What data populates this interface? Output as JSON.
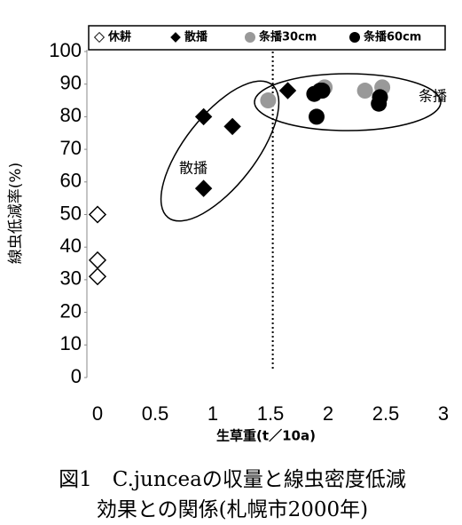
{
  "chart_data": {
    "type": "scatter",
    "caption": [
      "図1　C.junceaの収量と線虫密度低減",
      "効果との関係(札幌市2000年)"
    ],
    "xlabel": "生草重(t／10a)",
    "ylabel": "線虫低減率(%)",
    "xlim": [
      0,
      3
    ],
    "xticks": [
      0,
      0.5,
      1,
      1.5,
      2,
      2.5,
      3
    ],
    "ylim": [
      0,
      100
    ],
    "yticks": [
      0,
      10,
      20,
      30,
      40,
      50,
      60,
      70,
      80,
      90,
      100
    ],
    "reference_x": 1.52,
    "annotations": [
      "散播",
      "条播"
    ],
    "series": [
      {
        "name": "休耕",
        "color": "#000000",
        "marker": "diamond-open",
        "x": [
          0,
          0,
          0
        ],
        "values": [
          50,
          36,
          31
        ]
      },
      {
        "name": "散播",
        "color": "#000000",
        "marker": "diamond",
        "x": [
          0.92,
          1.17,
          0.92,
          1.65
        ],
        "values": [
          80,
          77,
          58,
          88
        ]
      },
      {
        "name": "条播30cm",
        "color": "#999999",
        "marker": "circle",
        "x": [
          1.48,
          1.97,
          2.32,
          2.47
        ],
        "values": [
          85,
          89,
          88,
          89
        ]
      },
      {
        "name": "条播60cm",
        "color": "#000000",
        "marker": "circle",
        "x": [
          1.88,
          1.93,
          1.95,
          1.9,
          2.45,
          2.44
        ],
        "values": [
          87,
          88,
          88,
          80,
          86,
          84
        ]
      }
    ]
  }
}
